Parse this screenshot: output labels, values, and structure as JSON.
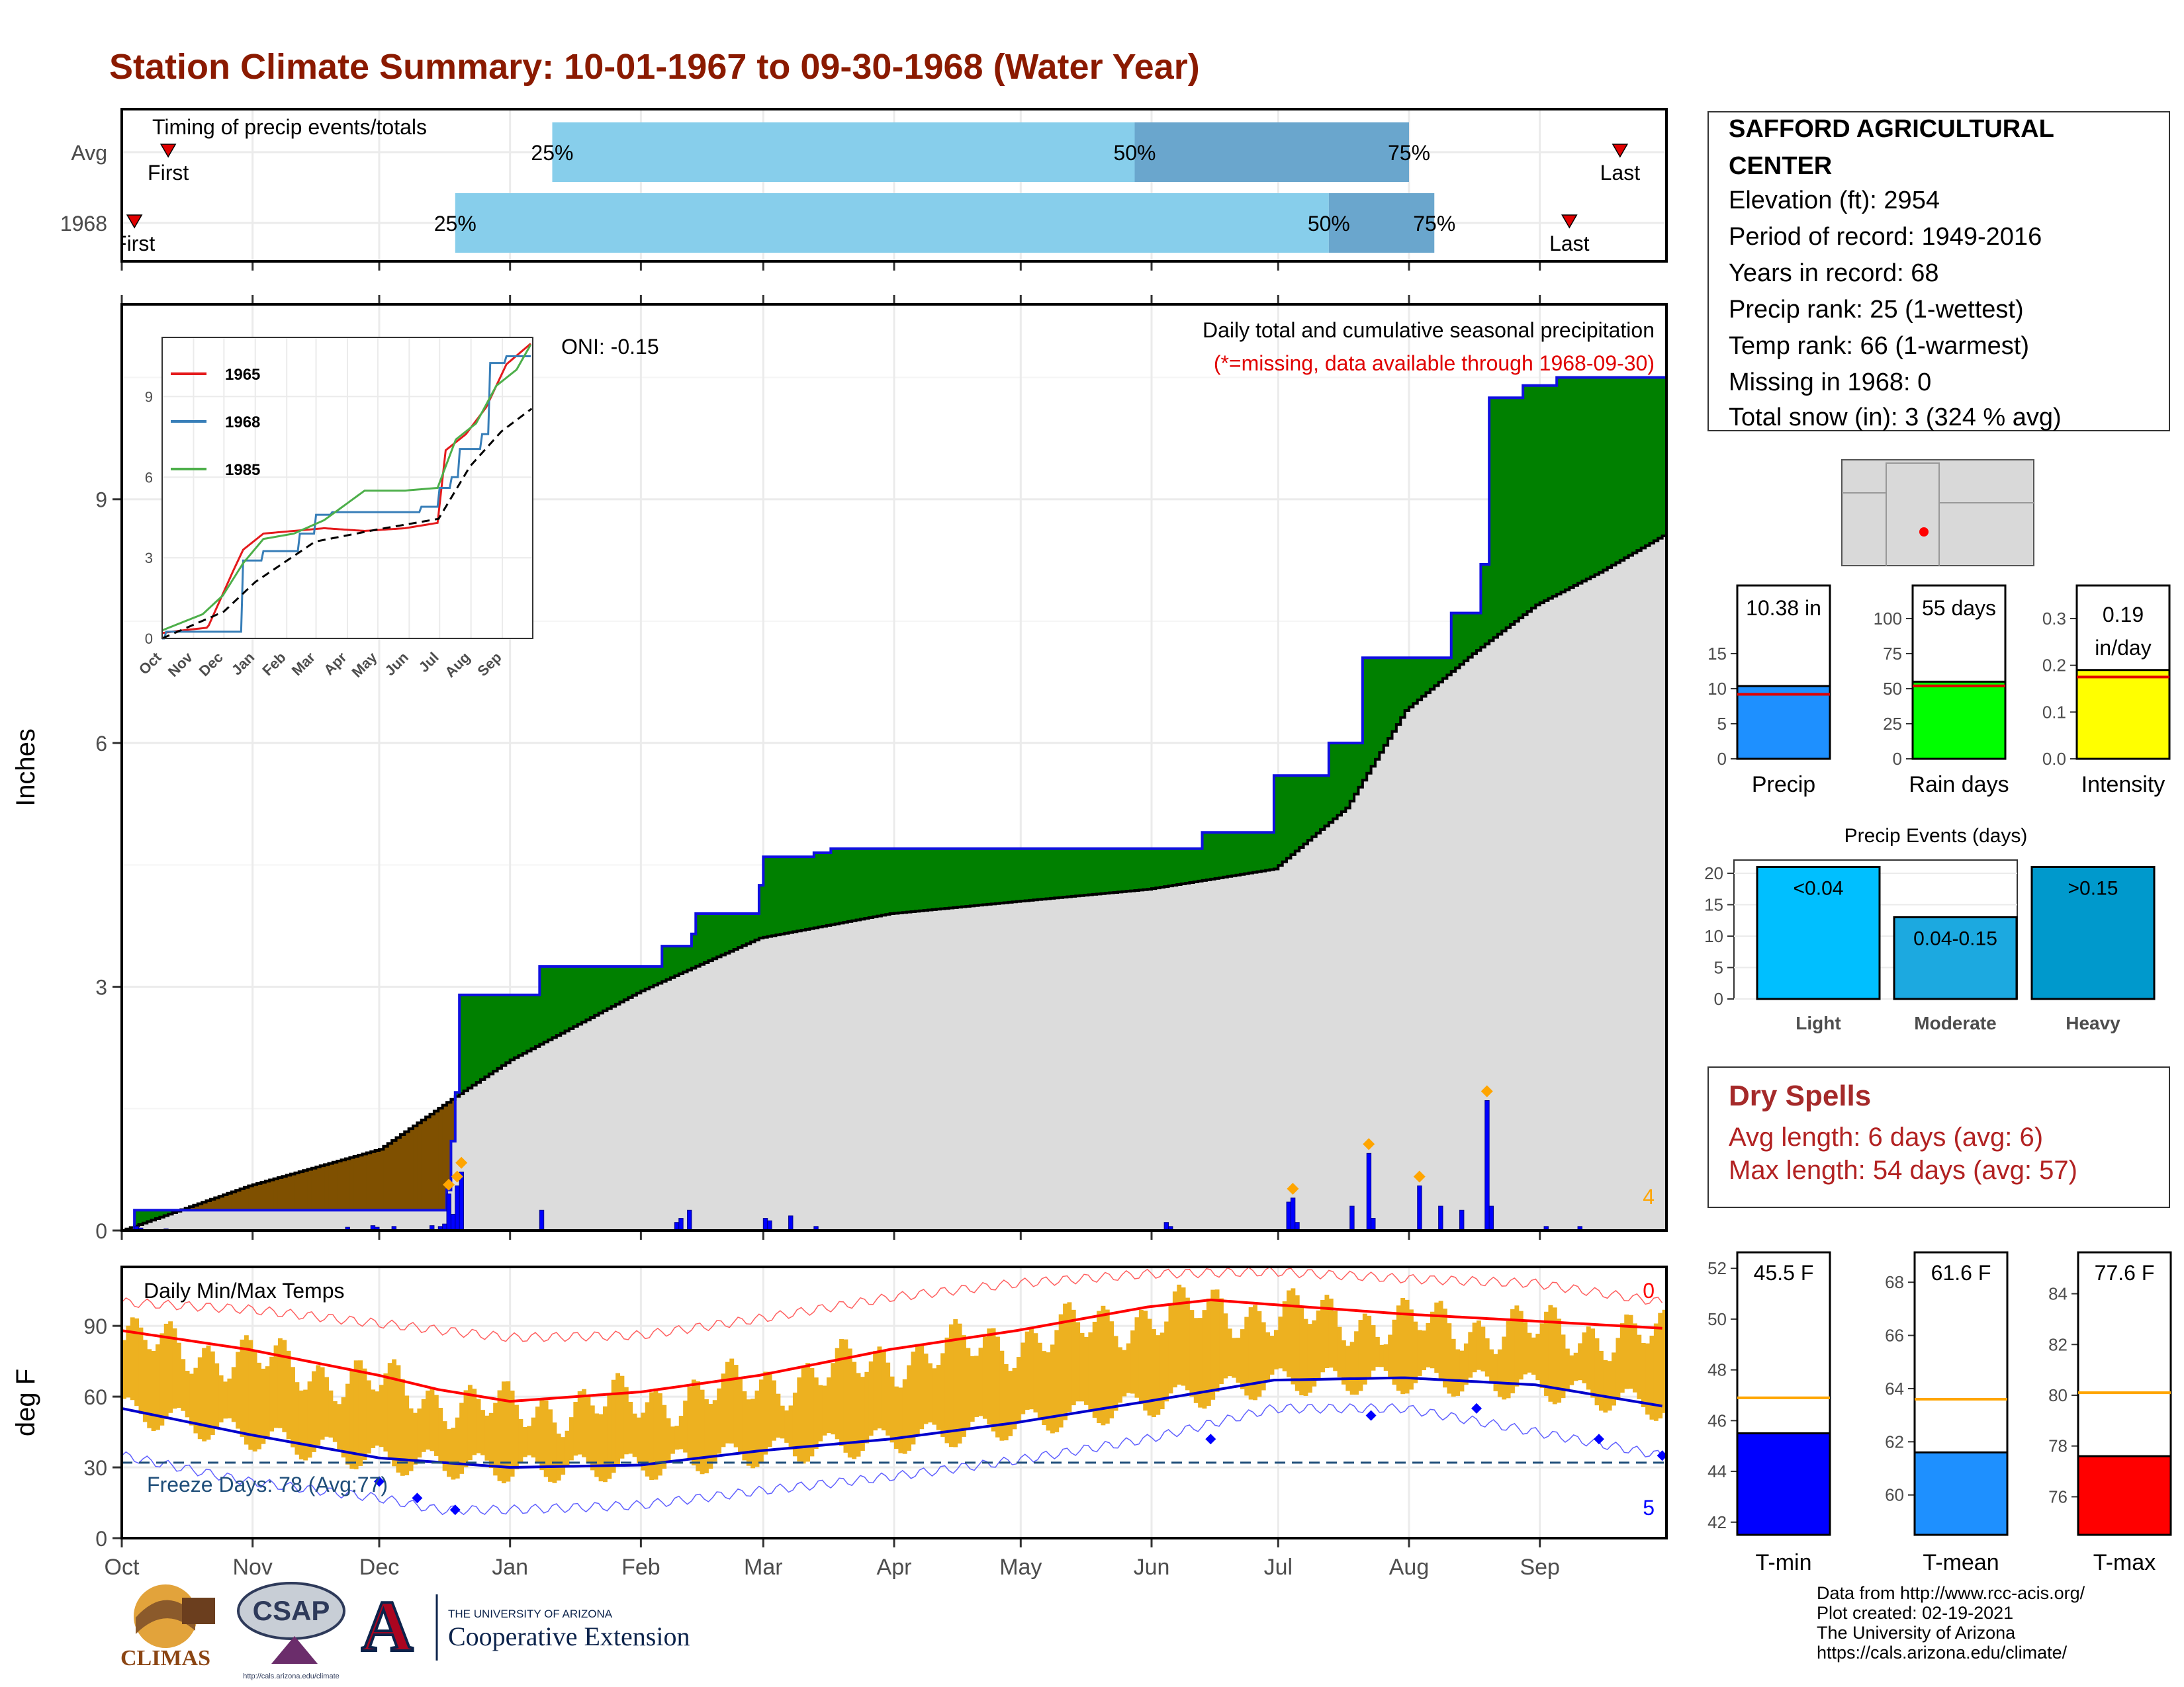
{
  "title": "Station Climate Summary: 10-01-1967 to 09-30-1968 (Water Year)",
  "timing": {
    "label": "Timing of precip events/totals",
    "rows": [
      {
        "name": "Avg",
        "first_label": "First",
        "last_label": "Last",
        "pct25": "25%",
        "pct50": "50%",
        "pct75": "75%",
        "first_day": 11,
        "p25_day": 102,
        "p50_day": 240,
        "p75_day": 305,
        "last_day": 355
      },
      {
        "name": "1968",
        "first_label": "First",
        "last_label": "Last",
        "pct25": "25%",
        "pct50": "50%",
        "pct75": "75%",
        "first_day": 3,
        "p25_day": 79,
        "p50_day": 286,
        "p75_day": 311,
        "last_day": 343
      }
    ],
    "colors": {
      "light": "#87CEEB",
      "dark": "#6AA6CD"
    }
  },
  "station": {
    "name": "SAFFORD AGRICULTURAL CENTER",
    "name_line1": "SAFFORD AGRICULTURAL",
    "name_line2": "CENTER",
    "elevation": "Elevation (ft): 2954",
    "period": "Period of record: 1949-2016",
    "years": "Years in record: 68",
    "precip_rank": "Precip rank: 25 (1-wettest)",
    "temp_rank": "Temp rank: 66 (1-warmest)",
    "missing": "Missing in 1968: 0",
    "snow": "Total snow (in): 3 (324 % avg)"
  },
  "precip_panel": {
    "ylabel": "Inches",
    "title": "Daily total and cumulative seasonal precipitation",
    "subtitle": "(*=missing, data available through 1968-09-30)",
    "oni": "ONI: -0.15",
    "corner_count": "4",
    "yticks": [
      "0",
      "3",
      "6",
      "9"
    ]
  },
  "inset": {
    "yticks": [
      "0",
      "3",
      "6",
      "9"
    ],
    "xticks": [
      "Oct",
      "Nov",
      "Dec",
      "Jan",
      "Feb",
      "Mar",
      "Apr",
      "May",
      "Jun",
      "Jul",
      "Aug",
      "Sep"
    ],
    "legend": [
      {
        "name": "1965",
        "color": "#E41A1C"
      },
      {
        "name": "1968",
        "color": "#377EB8"
      },
      {
        "name": "1985",
        "color": "#4DAF4A"
      }
    ]
  },
  "temp_panel": {
    "ylabel": "deg F",
    "title": "Daily Min/Max Temps",
    "freeze": "Freeze Days: 78 (Avg:77)",
    "top_count": "0",
    "bottom_count": "5",
    "yticks": [
      "0",
      "30",
      "60",
      "90"
    ],
    "xticks": [
      "Oct",
      "Nov",
      "Dec",
      "Jan",
      "Feb",
      "Mar",
      "Apr",
      "May",
      "Jun",
      "Jul",
      "Aug",
      "Sep"
    ]
  },
  "stat_bars": [
    {
      "label": "Precip",
      "value_text": "10.38 in",
      "value": 10.38,
      "avg": 9.2,
      "ymax": 20,
      "ticks": [
        "0",
        "5",
        "10",
        "15"
      ],
      "color": "#1E90FF"
    },
    {
      "label": "Rain days",
      "value_text": "55 days",
      "value": 55,
      "avg": 52,
      "ymax": 100,
      "ticks": [
        "0",
        "25",
        "50",
        "75",
        "100"
      ],
      "color": "#00FF00"
    },
    {
      "label": "Intensity",
      "value_text": "0.19 in/day",
      "value_line1": "0.19",
      "value_line2": "in/day",
      "value": 0.19,
      "avg": 0.175,
      "ymax": 0.3,
      "ticks": [
        "0.0",
        "0.1",
        "0.2",
        "0.3"
      ],
      "color": "#FFFF00"
    }
  ],
  "precip_events": {
    "title": "Precip Events (days)",
    "ticks": [
      "0",
      "5",
      "10",
      "15",
      "20"
    ],
    "bars": [
      {
        "category": "Light",
        "label": "<0.04",
        "value": 21,
        "color": "#00BFFF"
      },
      {
        "category": "Moderate",
        "label": "0.04-0.15",
        "value": 13,
        "color": "#1CA9E0"
      },
      {
        "category": "Heavy",
        "label": ">0.15",
        "value": 21,
        "color": "#0099CC"
      }
    ]
  },
  "dry_spells": {
    "title": "Dry Spells",
    "avg": "Avg length: 6 days (avg: 6)",
    "max": "Max length: 54 days (avg: 57)"
  },
  "temp_bars": [
    {
      "label": "T-min",
      "value_text": "45.5 F",
      "value": 45.5,
      "avg": 46.9,
      "ymin": 41.5,
      "ymax": 52.5,
      "ticks": [
        "42",
        "44",
        "46",
        "48",
        "50",
        "52"
      ],
      "color": "#0000FF"
    },
    {
      "label": "T-mean",
      "value_text": "61.6 F",
      "value": 61.6,
      "avg": 63.6,
      "ymin": 58.5,
      "ymax": 69,
      "ticks": [
        "60",
        "62",
        "64",
        "66",
        "68"
      ],
      "color": "#1E90FF"
    },
    {
      "label": "T-max",
      "value_text": "77.6 F",
      "value": 77.6,
      "avg": 80.1,
      "ymin": 74.5,
      "ymax": 85.5,
      "ticks": [
        "76",
        "78",
        "80",
        "82",
        "84"
      ],
      "color": "#FF0000"
    }
  ],
  "credits": {
    "line1": "Data from http://www.rcc-acis.org/",
    "line2": "Plot created: 02-19-2021",
    "line3": "The University of Arizona",
    "line4": "https://cals.arizona.edu/climate/"
  },
  "logos": {
    "climas": "CLIMAS",
    "csap": "CSAP",
    "csap_url": "http://cals.arizona.edu/climate",
    "ua_top": "THE UNIVERSITY OF ARIZONA",
    "ua_bottom": "Cooperative Extension"
  },
  "chart_data": [
    {
      "type": "area",
      "title": "Daily total and cumulative seasonal precipitation",
      "ylabel": "Inches",
      "ylim": [
        0,
        11.4
      ],
      "x_unit": "day of water year (Oct 1 = 0)",
      "cumulative_1968": {
        "day": [
          0,
          3,
          18,
          45,
          77,
          78,
          79,
          80,
          99,
          120,
          128,
          135,
          136,
          142,
          151,
          152,
          164,
          168,
          186,
          210,
          256,
          272,
          273,
          286,
          294,
          296,
          315,
          322,
          324,
          332,
          340,
          365
        ],
        "value": [
          0,
          0.25,
          0.25,
          0.25,
          0.5,
          1.1,
          1.7,
          2.9,
          3.25,
          3.25,
          3.5,
          3.65,
          3.9,
          3.9,
          4.25,
          4.6,
          4.65,
          4.7,
          4.7,
          4.7,
          4.9,
          4.9,
          5.6,
          6.0,
          7.05,
          7.05,
          7.6,
          8.2,
          10.25,
          10.4,
          10.5,
          10.5
        ]
      },
      "cumulative_avg": {
        "day": [
          0,
          30,
          61,
          79,
          92,
          123,
          151,
          182,
          212,
          243,
          273,
          290,
          304,
          320,
          335,
          350,
          365
        ],
        "value": [
          0,
          0.55,
          1.0,
          1.65,
          2.1,
          2.95,
          3.6,
          3.9,
          4.05,
          4.2,
          4.45,
          5.2,
          6.4,
          7.1,
          7.7,
          8.1,
          8.55
        ]
      },
      "daily_1968": [
        {
          "day": 3,
          "value": 0.05
        },
        {
          "day": 4,
          "value": 0.03
        },
        {
          "day": 10,
          "value": 0.02
        },
        {
          "day": 53,
          "value": 0.04
        },
        {
          "day": 59,
          "value": 0.06
        },
        {
          "day": 60,
          "value": 0.04
        },
        {
          "day": 64,
          "value": 0.05
        },
        {
          "day": 73,
          "value": 0.06
        },
        {
          "day": 75,
          "value": 0.05
        },
        {
          "day": 76,
          "value": 0.08
        },
        {
          "day": 77,
          "value": 0.45
        },
        {
          "day": 78,
          "value": 0.2
        },
        {
          "day": 79,
          "value": 0.55
        },
        {
          "day": 80,
          "value": 0.72
        },
        {
          "day": 99,
          "value": 0.25
        },
        {
          "day": 131,
          "value": 0.1
        },
        {
          "day": 132,
          "value": 0.15
        },
        {
          "day": 134,
          "value": 0.25
        },
        {
          "day": 152,
          "value": 0.15
        },
        {
          "day": 153,
          "value": 0.12
        },
        {
          "day": 158,
          "value": 0.18
        },
        {
          "day": 164,
          "value": 0.05
        },
        {
          "day": 247,
          "value": 0.1
        },
        {
          "day": 248,
          "value": 0.05
        },
        {
          "day": 276,
          "value": 0.35
        },
        {
          "day": 277,
          "value": 0.4
        },
        {
          "day": 278,
          "value": 0.1
        },
        {
          "day": 291,
          "value": 0.3
        },
        {
          "day": 295,
          "value": 0.95
        },
        {
          "day": 296,
          "value": 0.15
        },
        {
          "day": 307,
          "value": 0.55
        },
        {
          "day": 312,
          "value": 0.3
        },
        {
          "day": 317,
          "value": 0.25
        },
        {
          "day": 323,
          "value": 1.6
        },
        {
          "day": 324,
          "value": 0.3
        },
        {
          "day": 337,
          "value": 0.05
        },
        {
          "day": 345,
          "value": 0.05
        }
      ]
    },
    {
      "type": "line",
      "title": "Inset: cumulative precipitation comparison",
      "ylim": [
        0,
        11
      ],
      "x_unit": "day of water year",
      "series": [
        {
          "name": "1965",
          "day": [
            0,
            20,
            45,
            70,
            80,
            100,
            130,
            160,
            200,
            240,
            272,
            280,
            300,
            320,
            340,
            365
          ],
          "values": [
            0.2,
            0.3,
            0.4,
            2.5,
            3.3,
            3.9,
            4.0,
            4.1,
            4.0,
            4.1,
            4.3,
            7.0,
            7.6,
            8.6,
            10.2,
            11.0
          ]
        },
        {
          "name": "1968",
          "day": [
            0,
            3,
            45,
            79,
            80,
            99,
            136,
            152,
            168,
            256,
            273,
            286,
            294,
            315,
            324,
            340,
            365
          ],
          "values": [
            0,
            0.25,
            0.25,
            1.7,
            2.9,
            3.25,
            3.9,
            4.6,
            4.7,
            4.9,
            5.6,
            6.0,
            7.05,
            7.6,
            10.25,
            10.5,
            10.5
          ]
        },
        {
          "name": "1985",
          "day": [
            0,
            20,
            40,
            60,
            80,
            100,
            130,
            160,
            200,
            240,
            272,
            290,
            310,
            330,
            350,
            365
          ],
          "values": [
            0.3,
            0.6,
            0.9,
            1.6,
            2.8,
            3.7,
            3.9,
            4.4,
            5.5,
            5.5,
            5.6,
            7.4,
            8.0,
            9.4,
            10.0,
            11.0
          ]
        },
        {
          "name": "avg",
          "day": [
            0,
            61,
            92,
            151,
            212,
            273,
            304,
            335,
            365
          ],
          "values": [
            0,
            1.0,
            2.1,
            3.6,
            4.05,
            4.45,
            6.4,
            7.7,
            8.55
          ]
        }
      ]
    },
    {
      "type": "line",
      "title": "Daily Min/Max Temps",
      "ylabel": "deg F",
      "ylim": [
        0,
        115
      ],
      "x_unit": "day of water year",
      "series": [
        {
          "name": "avg max",
          "day": [
            0,
            30,
            61,
            75,
            92,
            123,
            151,
            182,
            212,
            243,
            258,
            273,
            304,
            335,
            365
          ],
          "values": [
            88,
            80,
            69,
            63,
            58,
            62,
            69,
            80,
            88,
            98,
            101,
            99,
            95,
            92,
            89
          ]
        },
        {
          "name": "avg min",
          "day": [
            0,
            30,
            61,
            92,
            123,
            151,
            182,
            212,
            243,
            273,
            304,
            335,
            365
          ],
          "values": [
            55,
            44,
            34,
            30,
            31,
            37,
            42,
            49,
            58,
            67,
            68,
            65,
            56
          ]
        },
        {
          "name": "record max",
          "day": [
            0,
            30,
            61,
            92,
            123,
            151,
            182,
            212,
            243,
            273,
            304,
            335,
            365
          ],
          "values": [
            100,
            97,
            91,
            85,
            86,
            93,
            102,
            108,
            112,
            113,
            110,
            108,
            100
          ]
        },
        {
          "name": "record min",
          "day": [
            0,
            30,
            61,
            75,
            92,
            123,
            151,
            182,
            212,
            243,
            273,
            304,
            335,
            365
          ],
          "values": [
            35,
            24,
            17,
            12,
            12,
            14,
            20,
            26,
            33,
            42,
            55,
            55,
            45,
            35
          ]
        },
        {
          "name": "freeze line",
          "day": [
            0,
            365
          ],
          "values": [
            32,
            32
          ]
        }
      ]
    },
    {
      "type": "bar",
      "categories": [
        "Precip",
        "Rain days",
        "Intensity"
      ],
      "values": [
        10.38,
        55,
        0.19
      ]
    },
    {
      "type": "bar",
      "title": "Precip Events (days)",
      "categories": [
        "Light",
        "Moderate",
        "Heavy"
      ],
      "values": [
        21,
        13,
        21
      ]
    },
    {
      "type": "bar",
      "categories": [
        "T-min",
        "T-mean",
        "T-max"
      ],
      "values": [
        45.5,
        61.6,
        77.6
      ]
    }
  ]
}
